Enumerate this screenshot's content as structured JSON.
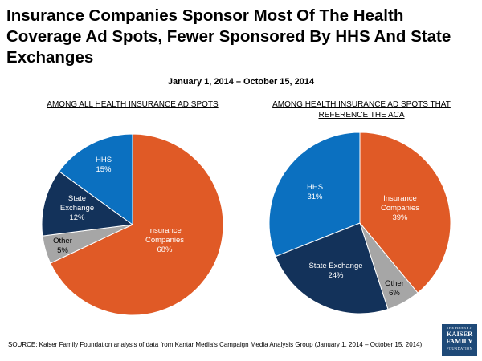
{
  "title": "Insurance Companies Sponsor Most Of The Health Coverage Ad Spots, Fewer Sponsored By HHS And State Exchanges",
  "subtitle": "January 1, 2014 – October 15, 2014",
  "source": "SOURCE: Kaiser Family Foundation analysis of data from Kantar Media’s Campaign Media Analysis Group (January 1, 2014 – October 15, 2014)",
  "logo": {
    "line1": "THE HENRY J.",
    "line2": "KAISER",
    "line3": "FAMILY",
    "line4": "FOUNDATION"
  },
  "chart_data": [
    {
      "type": "pie",
      "title": "AMONG ALL HEALTH INSURANCE AD SPOTS",
      "slices": [
        {
          "label": "Insurance Companies",
          "value": 68,
          "display": "68%",
          "color": "#e05a26"
        },
        {
          "label": "Other",
          "value": 5,
          "display": "5%",
          "color": "#a6a6a6"
        },
        {
          "label": "State Exchange",
          "value": 12,
          "display": "12%",
          "color": "#13325a"
        },
        {
          "label": "HHS",
          "value": 15,
          "display": "15%",
          "color": "#0b70c0"
        }
      ]
    },
    {
      "type": "pie",
      "title": "AMONG HEALTH INSURANCE AD SPOTS THAT REFERENCE THE ACA",
      "slices": [
        {
          "label": "Insurance Companies",
          "value": 39,
          "display": "39%",
          "color": "#e05a26"
        },
        {
          "label": "Other",
          "value": 6,
          "display": "6%",
          "color": "#a6a6a6"
        },
        {
          "label": "State Exchange",
          "value": 24,
          "display": "24%",
          "color": "#13325a"
        },
        {
          "label": "HHS",
          "value": 31,
          "display": "31%",
          "color": "#0b70c0"
        }
      ]
    }
  ]
}
